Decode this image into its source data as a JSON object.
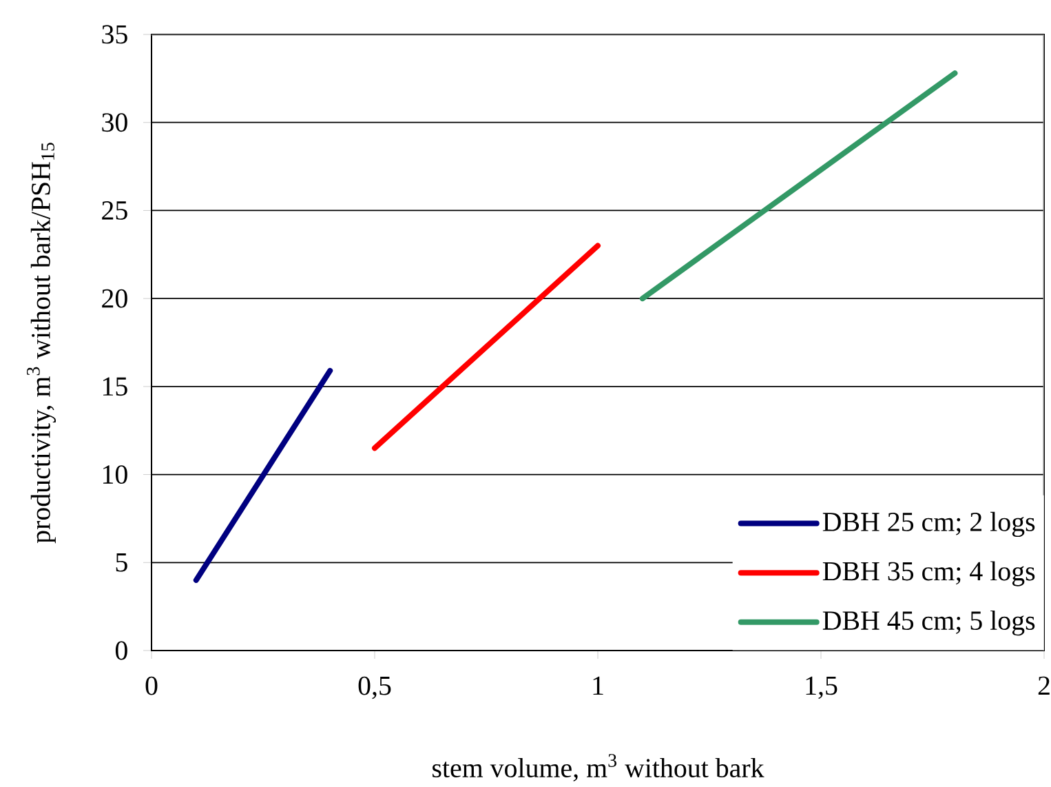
{
  "chart_data": {
    "type": "line",
    "xlabel": "stem volume, m$^{3}$ without bark",
    "ylabel": "productivity, m$^{3}$ without bark/PSH$_{15}$",
    "xlim": [
      0,
      2
    ],
    "ylim": [
      0,
      35
    ],
    "xticks": [
      0,
      {
        "value": 0.5,
        "label": "0,5"
      },
      1,
      {
        "value": 1.5,
        "label": "1,5"
      },
      2
    ],
    "yticks": [
      0,
      5,
      10,
      15,
      20,
      25,
      30,
      35
    ],
    "grid": "y",
    "legend": "bottom right",
    "series": [
      {
        "name": "DBH 25 cm; 2 logs",
        "color": "#000080",
        "x": [
          0.1,
          0.4
        ],
        "values": [
          4.0,
          15.9
        ]
      },
      {
        "name": "DBH 35 cm; 4 logs",
        "color": "#ff0000",
        "x": [
          0.5,
          1.0
        ],
        "values": [
          11.5,
          23.0
        ]
      },
      {
        "name": "DBH 45 cm; 5 logs",
        "color": "#339966",
        "x": [
          1.1,
          1.8
        ],
        "values": [
          20.0,
          32.8
        ]
      }
    ]
  }
}
